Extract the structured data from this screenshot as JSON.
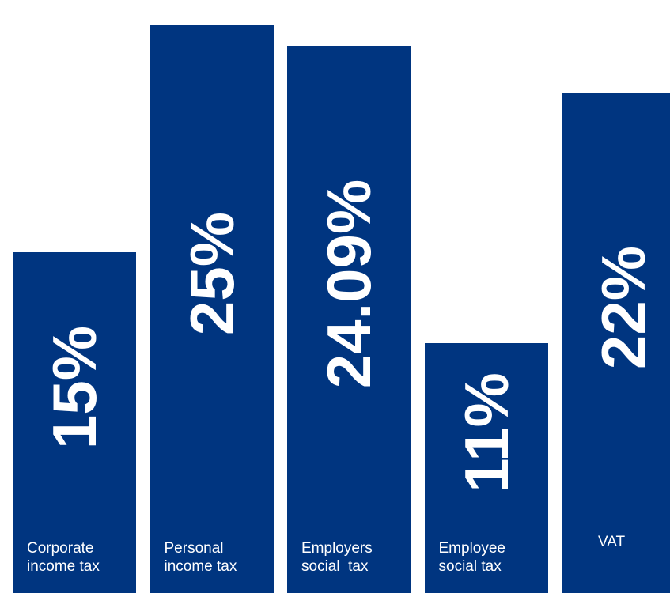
{
  "chart_data": {
    "type": "bar",
    "orientation": "vertical",
    "categories": [
      [
        "Corporate",
        "income tax"
      ],
      [
        "Personal",
        "income tax"
      ],
      [
        "Employers",
        "social  tax"
      ],
      [
        "Employee",
        "social tax"
      ],
      [
        "",
        "VAT"
      ]
    ],
    "values": [
      15,
      25,
      24.09,
      11,
      22
    ],
    "value_labels": [
      "15%",
      "25%",
      "24.09%",
      "11%",
      "22%"
    ],
    "title": "",
    "xlabel": "",
    "ylabel": "",
    "ylim": [
      0,
      25.8
    ],
    "grid": false,
    "legend": "none"
  },
  "colors": {
    "bar": "#003580",
    "text": "#ffffff",
    "background": "#ffffff"
  }
}
